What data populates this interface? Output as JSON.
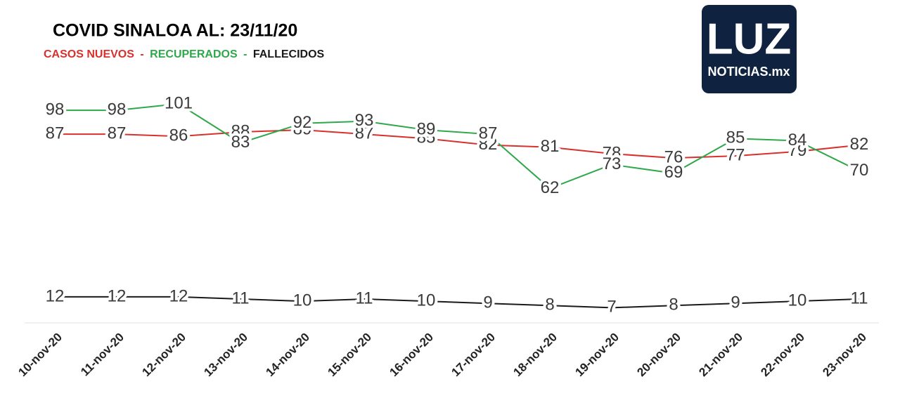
{
  "chart_data": {
    "type": "line",
    "title": "COVID SINALOA AL: 23/11/20",
    "legend_separator": "-",
    "categories": [
      "10-nov-20",
      "11-nov-20",
      "12-nov-20",
      "13-nov-20",
      "14-nov-20",
      "15-nov-20",
      "16-nov-20",
      "17-nov-20",
      "18-nov-20",
      "19-nov-20",
      "20-nov-20",
      "21-nov-20",
      "22-nov-20",
      "23-nov-20"
    ],
    "series": [
      {
        "name": "CASOS NUEVOS",
        "color": "#d9302c",
        "values": [
          87,
          87,
          86,
          88,
          89,
          87,
          85,
          82,
          81,
          78,
          76,
          77,
          79,
          82
        ]
      },
      {
        "name": "RECUPERADOS",
        "color": "#2ea84a",
        "values": [
          98,
          98,
          101,
          83,
          92,
          93,
          89,
          87,
          62,
          73,
          69,
          85,
          84,
          70
        ]
      },
      {
        "name": "FALLECIDOS",
        "color": "#1a1a1a",
        "values": [
          12,
          12,
          12,
          11,
          10,
          11,
          10,
          9,
          8,
          7,
          8,
          9,
          10,
          11
        ]
      }
    ],
    "ylim": [
      0,
      105
    ]
  },
  "logo": {
    "title": "LUZ",
    "subtitle": "NOTICIAS.mx"
  }
}
